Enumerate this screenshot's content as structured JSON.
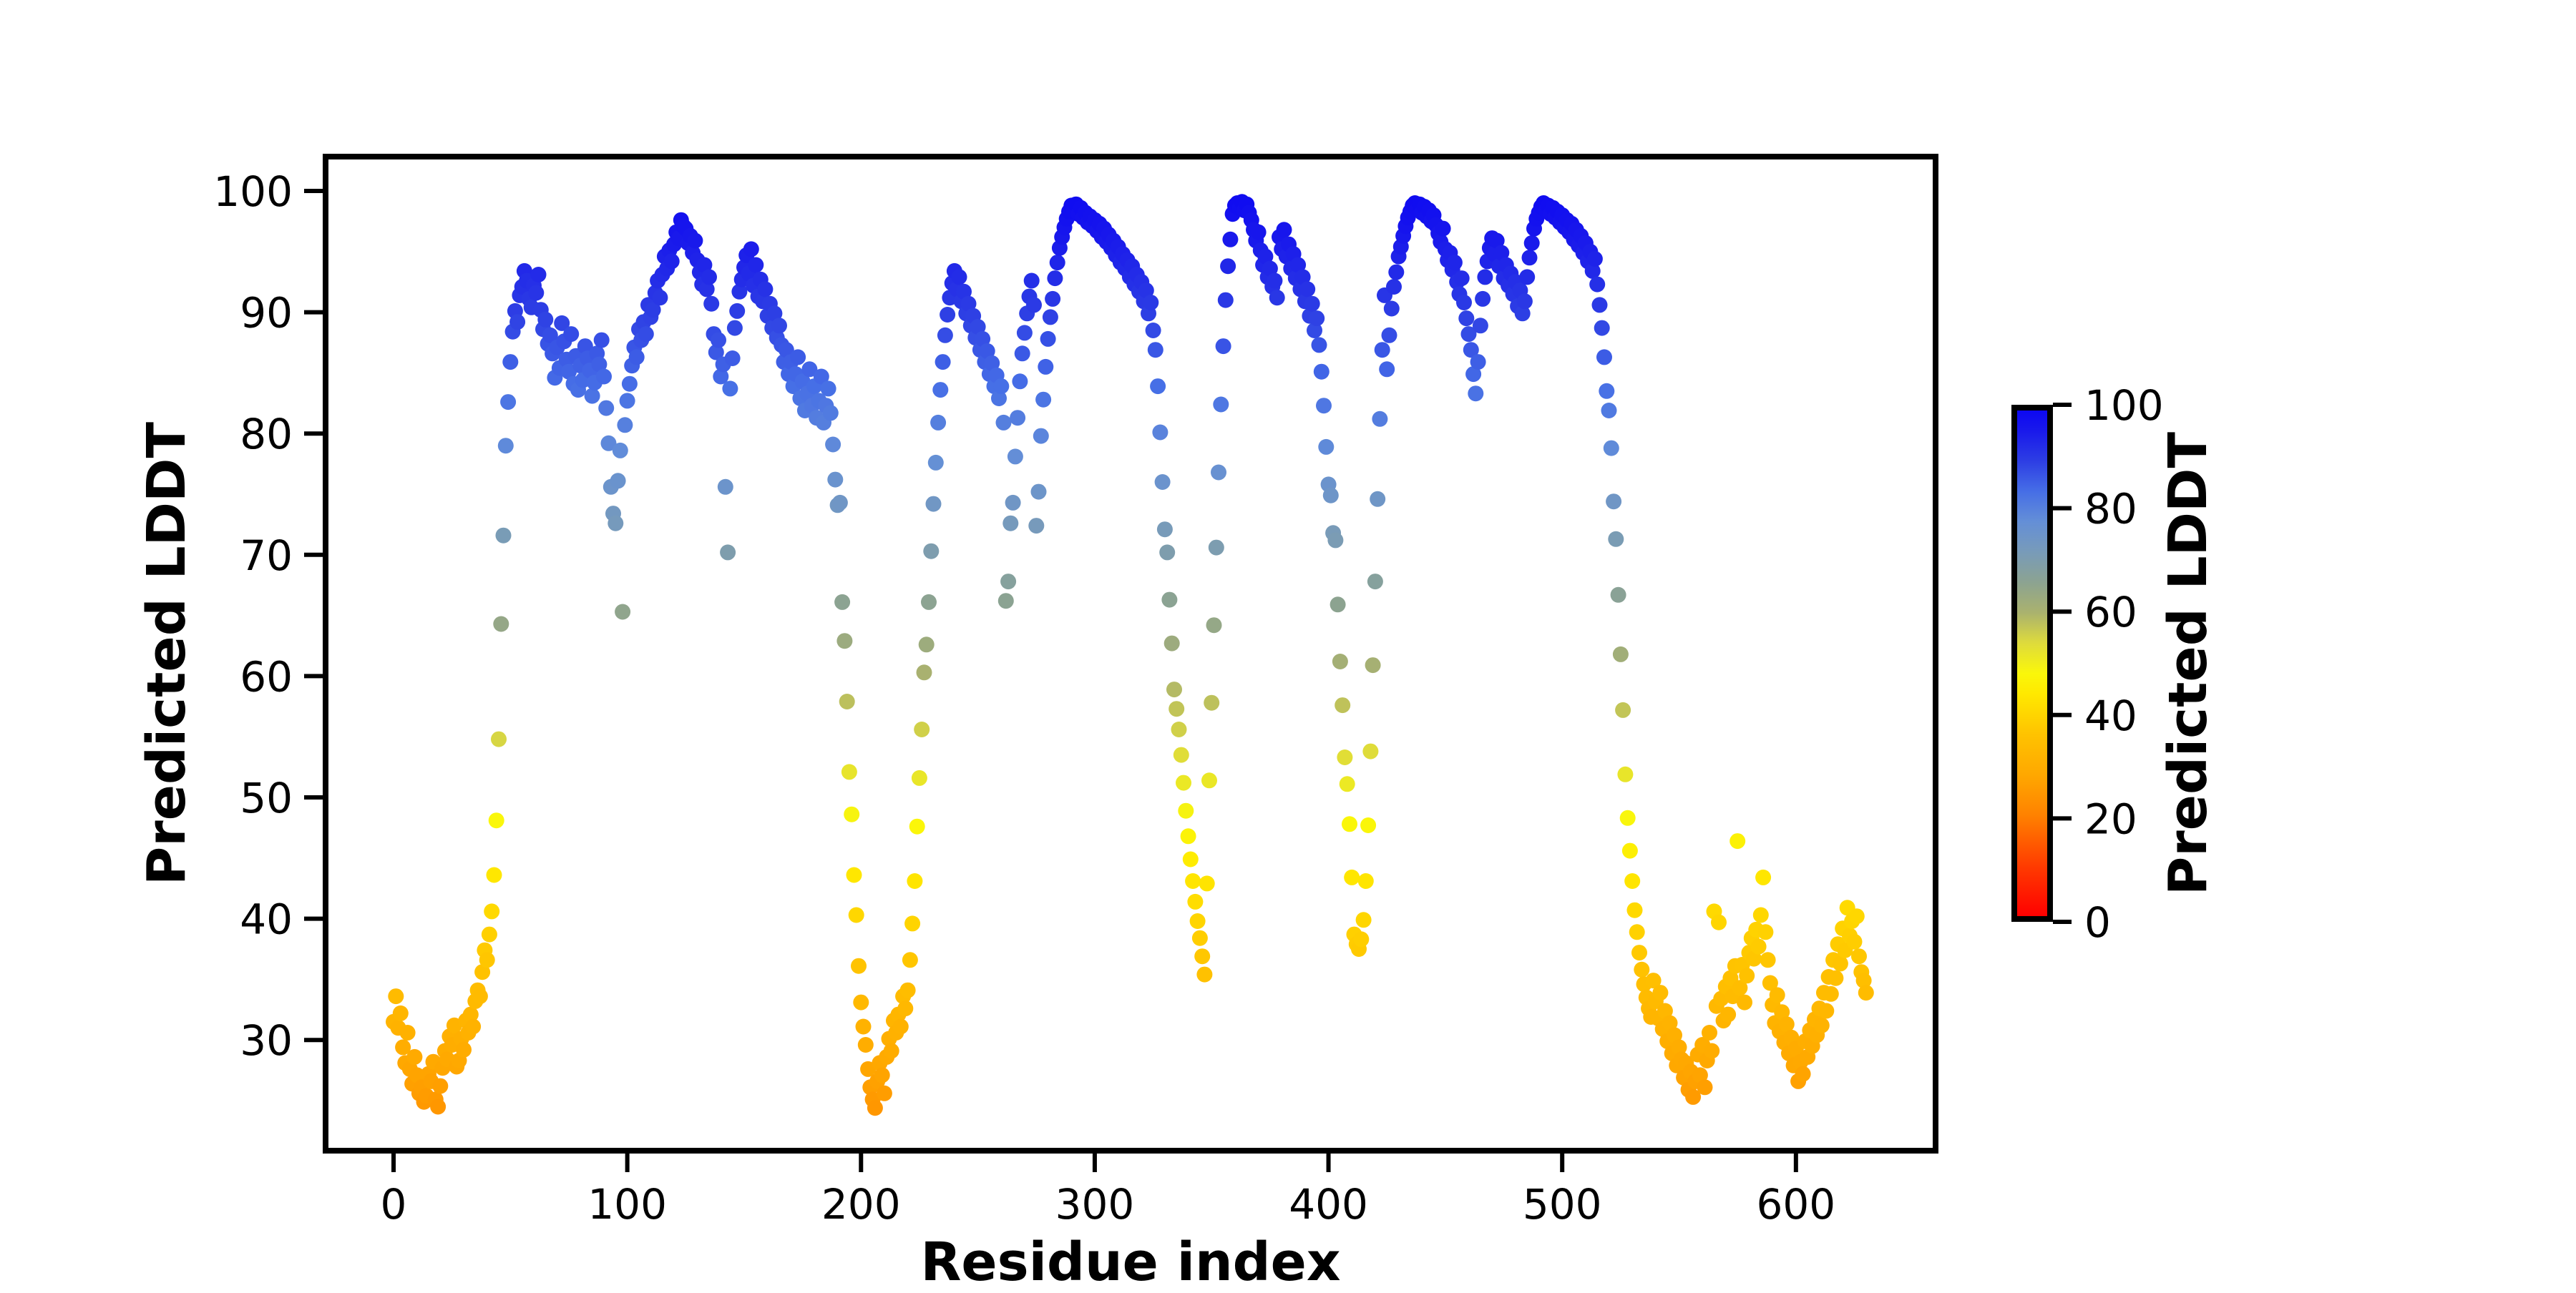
{
  "figure": {
    "background": "#ffffff"
  },
  "axes": {
    "xlabel": "Residue index",
    "ylabel": "Predicted LDDT",
    "x_ticks": [
      0,
      100,
      200,
      300,
      400,
      500,
      600
    ],
    "y_ticks": [
      30,
      40,
      50,
      60,
      70,
      80,
      90,
      100
    ],
    "xlim": [
      -29,
      660
    ],
    "ylim": [
      20.9,
      102.8
    ]
  },
  "colorbar": {
    "label": "Predicted LDDT",
    "ticks": [
      0,
      20,
      40,
      60,
      80,
      100
    ],
    "min": 0,
    "max": 100,
    "stops": [
      [
        0,
        "#ff0000"
      ],
      [
        10,
        "#ff3c00"
      ],
      [
        20,
        "#ff8200"
      ],
      [
        28,
        "#ffa800"
      ],
      [
        36,
        "#ffc300"
      ],
      [
        44,
        "#ffe900"
      ],
      [
        48,
        "#faf70a"
      ],
      [
        54,
        "#dedb3c"
      ],
      [
        60,
        "#aab26e"
      ],
      [
        66,
        "#8ca391"
      ],
      [
        72,
        "#789bb9"
      ],
      [
        78,
        "#648fd7"
      ],
      [
        84,
        "#466ee6"
      ],
      [
        90,
        "#2d3ee4"
      ],
      [
        96,
        "#1919eb"
      ],
      [
        100,
        "#0d08f2"
      ]
    ]
  },
  "chart_data": {
    "type": "scatter",
    "title": "",
    "xlabel": "Residue index",
    "ylabel": "Predicted LDDT",
    "xlim": [
      -29,
      660
    ],
    "ylim": [
      20.9,
      102.8
    ],
    "grid": false,
    "legend": "none (color encodes y value via colorbar)",
    "color_encoding": "each point colored by its Predicted LDDT value using the red-orange-yellow-gray-blue colormap of the colorbar",
    "x_description": "residue index; equals array position in y (residues 0-630)",
    "y": [
      31.5,
      33.6,
      31.0,
      32.2,
      29.4,
      28.1,
      30.6,
      27.6,
      26.4,
      28.6,
      27.1,
      25.6,
      26.1,
      24.9,
      25.4,
      27.2,
      26.6,
      28.2,
      25.1,
      24.5,
      26.2,
      27.7,
      29.1,
      28.4,
      30.3,
      29.6,
      31.2,
      27.8,
      28.3,
      30.1,
      29.2,
      31.6,
      30.6,
      32.1,
      31.1,
      33.2,
      34.1,
      33.6,
      35.6,
      37.4,
      36.6,
      38.7,
      40.6,
      43.6,
      48.1,
      54.8,
      64.3,
      71.6,
      79.0,
      82.6,
      85.9,
      88.4,
      90.1,
      89.2,
      91.4,
      92.1,
      93.4,
      92.6,
      91.1,
      90.4,
      92.2,
      91.6,
      93.1,
      90.2,
      88.6,
      89.4,
      87.4,
      88.1,
      86.6,
      84.6,
      87.1,
      85.4,
      89.1,
      87.6,
      86.1,
      85.1,
      88.2,
      84.1,
      86.4,
      83.6,
      85.6,
      84.4,
      87.2,
      86.2,
      85.2,
      83.1,
      84.2,
      86.6,
      85.7,
      87.7,
      84.7,
      82.1,
      79.2,
      75.6,
      73.4,
      72.6,
      76.1,
      78.6,
      65.3,
      80.7,
      82.7,
      84.1,
      85.6,
      87.1,
      86.3,
      88.6,
      87.7,
      89.2,
      88.2,
      90.6,
      89.6,
      90.2,
      91.6,
      92.6,
      91.2,
      93.1,
      94.6,
      93.6,
      95.1,
      94.2,
      95.6,
      96.6,
      96.1,
      97.6,
      97.1,
      96.9,
      95.7,
      96.3,
      94.9,
      95.9,
      94.3,
      93.3,
      92.3,
      93.9,
      91.9,
      92.9,
      90.7,
      88.2,
      86.7,
      87.7,
      84.7,
      85.7,
      75.6,
      70.2,
      83.7,
      86.2,
      88.7,
      90.1,
      91.7,
      92.7,
      93.7,
      94.7,
      93.2,
      95.2,
      92.2,
      93.9,
      91.3,
      92.7,
      90.9,
      91.9,
      89.7,
      90.7,
      88.7,
      89.9,
      87.9,
      88.9,
      87.3,
      85.9,
      86.9,
      84.9,
      85.9,
      83.9,
      84.9,
      86.3,
      82.9,
      84.3,
      81.9,
      83.3,
      85.3,
      82.3,
      83.9,
      81.3,
      82.7,
      84.7,
      80.9,
      82.3,
      83.7,
      81.7,
      79.1,
      76.2,
      74.1,
      74.3,
      66.1,
      62.9,
      57.9,
      52.1,
      48.6,
      43.6,
      40.3,
      36.1,
      33.1,
      31.1,
      29.6,
      27.6,
      26.1,
      25.1,
      24.4,
      26.6,
      28.1,
      27.1,
      25.6,
      28.6,
      30.1,
      29.1,
      31.6,
      30.6,
      32.1,
      31.1,
      33.6,
      32.6,
      34.1,
      36.6,
      39.6,
      43.1,
      47.6,
      51.6,
      55.6,
      60.3,
      62.6,
      66.1,
      70.3,
      74.2,
      77.6,
      80.9,
      83.6,
      85.9,
      88.1,
      89.8,
      91.2,
      92.4,
      93.4,
      91.9,
      92.9,
      90.9,
      91.7,
      89.9,
      90.7,
      88.9,
      89.7,
      87.9,
      88.8,
      86.9,
      87.8,
      85.9,
      86.8,
      84.9,
      85.8,
      83.9,
      84.8,
      82.9,
      83.9,
      80.9,
      66.2,
      67.8,
      72.6,
      74.3,
      78.1,
      81.3,
      84.3,
      86.6,
      88.3,
      89.9,
      91.3,
      92.6,
      90.6,
      72.4,
      75.2,
      79.8,
      82.8,
      85.5,
      87.8,
      89.6,
      91.1,
      92.8,
      94.1,
      95.3,
      96.2,
      97.0,
      97.7,
      98.3,
      98.8,
      98.4,
      98.9,
      98.1,
      98.6,
      97.8,
      98.2,
      97.4,
      97.9,
      97.1,
      97.6,
      96.7,
      97.3,
      96.2,
      96.9,
      95.8,
      96.4,
      95.3,
      95.9,
      94.7,
      95.4,
      94.1,
      94.8,
      93.6,
      94.3,
      92.9,
      93.8,
      92.3,
      93.1,
      91.7,
      92.5,
      90.9,
      91.8,
      89.9,
      90.8,
      88.5,
      86.9,
      83.9,
      80.1,
      76.0,
      72.1,
      70.2,
      66.3,
      62.7,
      58.9,
      57.3,
      55.6,
      53.5,
      51.2,
      48.9,
      46.8,
      44.9,
      43.1,
      41.4,
      39.8,
      38.4,
      36.9,
      35.4,
      42.9,
      51.4,
      57.8,
      64.2,
      70.6,
      76.8,
      82.4,
      87.2,
      91.0,
      93.8,
      96.0,
      98.1,
      98.8,
      99.0,
      98.6,
      99.1,
      98.4,
      98.9,
      98.2,
      97.6,
      96.8,
      95.9,
      96.6,
      95.1,
      93.9,
      94.6,
      92.9,
      93.6,
      92.1,
      92.6,
      91.2,
      96.2,
      95.2,
      96.8,
      94.6,
      95.6,
      93.6,
      94.8,
      92.8,
      93.9,
      91.9,
      92.9,
      90.9,
      91.9,
      89.7,
      90.7,
      88.5,
      89.5,
      87.3,
      85.1,
      82.3,
      78.9,
      75.8,
      74.9,
      71.8,
      71.2,
      65.9,
      61.2,
      57.6,
      53.3,
      51.1,
      47.8,
      43.4,
      38.7,
      37.9,
      37.5,
      38.3,
      39.9,
      43.1,
      47.7,
      53.8,
      60.9,
      67.8,
      74.6,
      81.2,
      86.9,
      91.4,
      85.3,
      88.1,
      90.3,
      92.1,
      93.3,
      94.6,
      95.4,
      96.3,
      97.1,
      97.8,
      98.3,
      98.8,
      99.0,
      98.5,
      98.9,
      98.2,
      98.7,
      97.9,
      98.4,
      97.5,
      98.0,
      97.2,
      96.5,
      95.8,
      96.9,
      95.2,
      94.3,
      94.9,
      93.5,
      94.1,
      92.5,
      91.5,
      92.8,
      90.8,
      89.5,
      88.2,
      86.9,
      84.9,
      83.3,
      85.9,
      88.9,
      91.1,
      92.9,
      94.2,
      95.3,
      96.1,
      94.8,
      95.9,
      93.8,
      94.9,
      92.8,
      93.9,
      92.2,
      93.2,
      91.5,
      92.5,
      90.5,
      91.8,
      89.9,
      90.9,
      92.9,
      94.5,
      95.7,
      96.9,
      97.7,
      98.2,
      98.7,
      99.0,
      98.4,
      98.8,
      98.1,
      98.6,
      97.8,
      98.3,
      97.4,
      98.0,
      97.0,
      97.6,
      96.6,
      97.3,
      96.0,
      96.8,
      95.5,
      96.3,
      94.9,
      95.7,
      94.2,
      95.0,
      93.4,
      94.4,
      92.3,
      90.6,
      88.7,
      86.3,
      83.5,
      81.9,
      78.8,
      74.4,
      71.3,
      66.7,
      61.8,
      57.2,
      51.9,
      48.3,
      45.6,
      43.1,
      40.7,
      38.9,
      37.2,
      35.8,
      34.6,
      33.5,
      32.6,
      31.9,
      34.9,
      33.2,
      31.8,
      33.9,
      30.9,
      32.4,
      29.9,
      31.4,
      28.9,
      30.4,
      27.9,
      29.4,
      28.4,
      26.9,
      28.1,
      25.9,
      27.4,
      25.3,
      26.6,
      28.8,
      27.1,
      29.6,
      26.1,
      28.3,
      30.6,
      29.1,
      40.6,
      32.8,
      39.7,
      33.4,
      31.6,
      34.4,
      32.1,
      35.1,
      33.6,
      36.1,
      46.4,
      34.3,
      36.2,
      33.1,
      35.3,
      37.2,
      38.4,
      36.7,
      39.1,
      37.7,
      40.3,
      43.4,
      38.9,
      36.6,
      34.7,
      32.9,
      31.4,
      33.7,
      30.7,
      32.3,
      29.8,
      31.3,
      28.9,
      30.2,
      27.9,
      29.3,
      26.6,
      28.2,
      27.2,
      29.9,
      28.6,
      30.8,
      29.5,
      31.7,
      30.4,
      32.6,
      31.2,
      33.9,
      32.4,
      35.2,
      33.8,
      36.6,
      35.1,
      37.9,
      36.3,
      39.2,
      37.4,
      40.9,
      38.6,
      39.8,
      38.1,
      40.2,
      36.9,
      35.6,
      34.9,
      33.9
    ]
  }
}
